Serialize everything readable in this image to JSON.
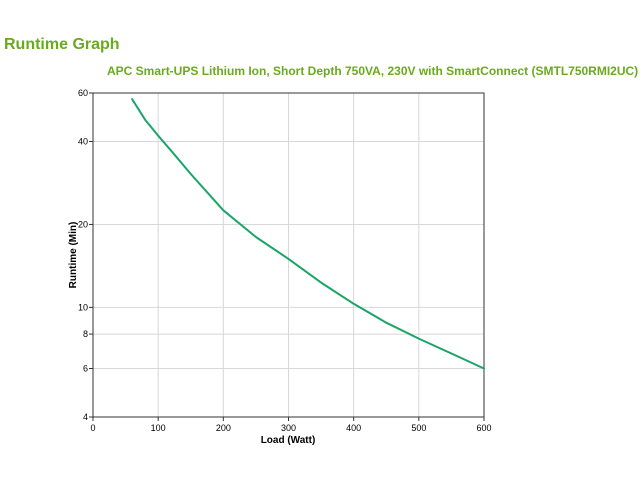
{
  "page": {
    "title": "Runtime Graph"
  },
  "chart_data": {
    "type": "line",
    "title": "APC Smart-UPS Lithium Ion, Short Depth 750VA, 230V with SmartConnect (SMTL750RMI2UC)",
    "xlabel": "Load (Watt)",
    "ylabel": "Runtime (Min)",
    "xlim": [
      0,
      600
    ],
    "ylim": [
      4,
      60
    ],
    "yscale": "log",
    "x_ticks": [
      0,
      100,
      200,
      300,
      400,
      500,
      600
    ],
    "y_ticks": [
      4,
      6,
      8,
      10,
      20,
      40,
      60
    ],
    "grid": true,
    "line_color": "#19a568",
    "series": [
      {
        "x": [
          60,
          80,
          100,
          120,
          150,
          200,
          250,
          300,
          350,
          400,
          450,
          500,
          550,
          600
        ],
        "values": [
          57,
          48,
          42,
          37,
          30.5,
          22.5,
          18,
          15,
          12.3,
          10.3,
          8.8,
          7.7,
          6.8,
          6.0
        ]
      }
    ]
  }
}
